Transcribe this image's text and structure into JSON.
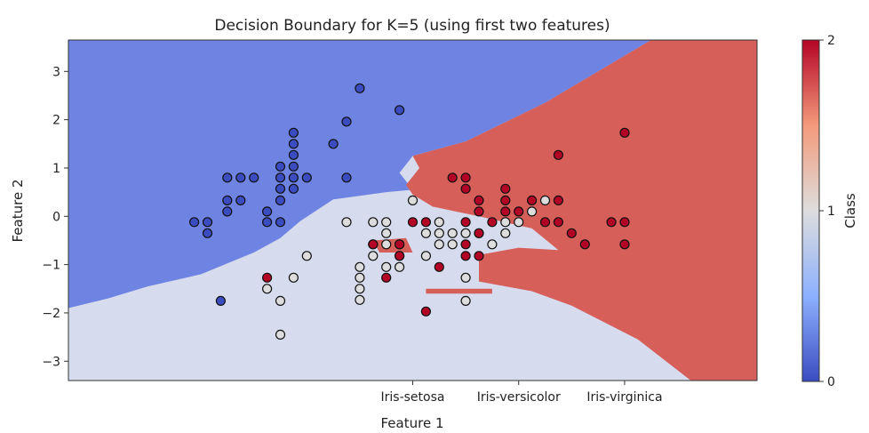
{
  "chart_data": {
    "type": "scatter",
    "title": "Decision Boundary for K=5 (using first two features)",
    "xlabel": "Feature 1",
    "ylabel": "Feature 2",
    "xlim": [
      -2.6,
      2.6
    ],
    "ylim": [
      -3.4,
      3.65
    ],
    "x_tick_labels": [
      {
        "value": 0.0,
        "label": "Iris-setosa"
      },
      {
        "value": 0.8,
        "label": "Iris-versicolor"
      },
      {
        "value": 1.6,
        "label": "Iris-virginica"
      }
    ],
    "y_ticks": [
      -3,
      -2,
      -1,
      0,
      1,
      2,
      3
    ],
    "y_tick_labels": [
      "−3",
      "−2",
      "−1",
      "0",
      "1",
      "2",
      "3"
    ],
    "colorbar": {
      "label": "Class",
      "ticks": [
        0,
        1,
        2
      ],
      "tick_labels": [
        "0",
        "1",
        "2"
      ],
      "colors": [
        "#3b4cc0",
        "#dddddd",
        "#b40426"
      ]
    },
    "region_colors": {
      "0": "#6f84e2",
      "1": "#d6dcee",
      "2": "#d65f5a"
    },
    "point_colors": {
      "0": "#3b4cc0",
      "1": "#dddddd",
      "2": "#b40426"
    },
    "regions": {
      "class0": [
        [
          -2.6,
          -1.9
        ],
        [
          -2.3,
          -1.7
        ],
        [
          -2.0,
          -1.45
        ],
        [
          -1.6,
          -1.2
        ],
        [
          -1.2,
          -0.75
        ],
        [
          -1.0,
          -0.45
        ],
        [
          -0.85,
          -0.1
        ],
        [
          -0.6,
          0.35
        ],
        [
          -0.2,
          0.5
        ],
        [
          0.0,
          0.55
        ],
        [
          -0.1,
          0.9
        ],
        [
          0.0,
          1.25
        ],
        [
          0.4,
          1.55
        ],
        [
          1.0,
          2.35
        ],
        [
          1.8,
          3.65
        ],
        [
          -2.6,
          3.65
        ]
      ],
      "class2": [
        [
          1.8,
          3.65
        ],
        [
          2.6,
          3.65
        ],
        [
          2.6,
          -3.4
        ],
        [
          2.1,
          -3.4
        ],
        [
          1.7,
          -2.55
        ],
        [
          1.2,
          -1.85
        ],
        [
          0.9,
          -1.55
        ],
        [
          0.5,
          -1.35
        ],
        [
          0.5,
          -0.8
        ],
        [
          0.8,
          -0.65
        ],
        [
          1.1,
          -0.7
        ],
        [
          0.9,
          -0.25
        ],
        [
          0.5,
          0.0
        ],
        [
          0.15,
          0.2
        ],
        [
          0.0,
          0.45
        ],
        [
          -0.05,
          0.65
        ],
        [
          0.05,
          1.0
        ],
        [
          0.0,
          1.25
        ],
        [
          0.4,
          1.55
        ],
        [
          1.0,
          2.35
        ]
      ],
      "patches2": [
        [
          [
            -0.3,
            -0.5
          ],
          [
            -0.05,
            -0.45
          ],
          [
            0.0,
            -0.75
          ],
          [
            -0.25,
            -0.75
          ]
        ],
        [
          [
            0.1,
            -1.5
          ],
          [
            0.6,
            -1.5
          ],
          [
            0.6,
            -1.6
          ],
          [
            0.1,
            -1.6
          ]
        ],
        [
          [
            1.75,
            -2.55
          ],
          [
            2.05,
            -2.7
          ],
          [
            2.05,
            -3.0
          ]
        ]
      ]
    },
    "series": [
      {
        "class": 0,
        "points": [
          [
            -1.65,
            -0.12
          ],
          [
            -1.55,
            -0.12
          ],
          [
            -1.55,
            -0.35
          ],
          [
            -1.45,
            -1.75
          ],
          [
            -1.4,
            0.8
          ],
          [
            -1.4,
            0.33
          ],
          [
            -1.4,
            0.1
          ],
          [
            -1.3,
            0.33
          ],
          [
            -1.3,
            0.8
          ],
          [
            -1.2,
            0.8
          ],
          [
            -1.1,
            0.1
          ],
          [
            -1.1,
            -0.12
          ],
          [
            -1.0,
            1.03
          ],
          [
            -1.0,
            0.8
          ],
          [
            -1.0,
            0.57
          ],
          [
            -1.0,
            0.33
          ],
          [
            -1.0,
            -0.12
          ],
          [
            -0.9,
            1.03
          ],
          [
            -0.9,
            0.8
          ],
          [
            -0.9,
            0.57
          ],
          [
            -0.9,
            1.27
          ],
          [
            -0.9,
            1.5
          ],
          [
            -0.9,
            1.73
          ],
          [
            -0.8,
            0.8
          ],
          [
            -0.6,
            1.5
          ],
          [
            -0.5,
            1.96
          ],
          [
            -0.5,
            0.8
          ],
          [
            -0.4,
            2.65
          ],
          [
            -0.1,
            2.2
          ]
        ]
      },
      {
        "class": 1,
        "points": [
          [
            -1.1,
            -1.5
          ],
          [
            -1.0,
            -1.75
          ],
          [
            -1.0,
            -2.45
          ],
          [
            -0.9,
            -1.27
          ],
          [
            -0.8,
            -0.82
          ],
          [
            -0.5,
            -0.12
          ],
          [
            -0.4,
            -1.05
          ],
          [
            -0.4,
            -1.27
          ],
          [
            -0.4,
            -1.5
          ],
          [
            -0.4,
            -1.73
          ],
          [
            -0.3,
            -0.58
          ],
          [
            -0.3,
            -0.82
          ],
          [
            -0.3,
            -0.12
          ],
          [
            -0.2,
            -0.12
          ],
          [
            -0.2,
            -0.35
          ],
          [
            -0.2,
            -0.58
          ],
          [
            -0.2,
            -1.05
          ],
          [
            -0.1,
            -0.58
          ],
          [
            -0.1,
            -0.82
          ],
          [
            -0.1,
            -1.05
          ],
          [
            0.0,
            0.33
          ],
          [
            0.1,
            -0.82
          ],
          [
            0.1,
            -0.35
          ],
          [
            0.2,
            -0.12
          ],
          [
            0.2,
            -0.35
          ],
          [
            0.2,
            -0.58
          ],
          [
            0.3,
            -0.35
          ],
          [
            0.3,
            -0.58
          ],
          [
            0.4,
            -0.35
          ],
          [
            0.4,
            -1.27
          ],
          [
            0.4,
            -1.75
          ],
          [
            0.5,
            -0.35
          ],
          [
            0.6,
            -0.58
          ],
          [
            0.7,
            -0.12
          ],
          [
            0.7,
            -0.35
          ],
          [
            0.8,
            -0.12
          ],
          [
            0.9,
            0.1
          ],
          [
            1.0,
            0.33
          ]
        ]
      },
      {
        "class": 2,
        "points": [
          [
            -1.1,
            -1.27
          ],
          [
            -0.3,
            -0.58
          ],
          [
            -0.2,
            -1.27
          ],
          [
            -0.1,
            -0.58
          ],
          [
            -0.1,
            -0.82
          ],
          [
            0.0,
            -0.12
          ],
          [
            0.1,
            -0.12
          ],
          [
            0.1,
            -1.97
          ],
          [
            0.2,
            -1.05
          ],
          [
            0.3,
            0.8
          ],
          [
            0.4,
            0.57
          ],
          [
            0.4,
            0.8
          ],
          [
            0.4,
            -0.58
          ],
          [
            0.4,
            -0.82
          ],
          [
            0.4,
            -0.12
          ],
          [
            0.5,
            0.33
          ],
          [
            0.5,
            0.1
          ],
          [
            0.5,
            -0.35
          ],
          [
            0.5,
            -0.82
          ],
          [
            0.6,
            -0.12
          ],
          [
            0.7,
            0.33
          ],
          [
            0.7,
            0.1
          ],
          [
            0.7,
            0.57
          ],
          [
            0.8,
            0.1
          ],
          [
            0.9,
            0.33
          ],
          [
            1.0,
            -0.12
          ],
          [
            1.1,
            -0.12
          ],
          [
            1.1,
            0.33
          ],
          [
            1.1,
            1.27
          ],
          [
            1.2,
            -0.35
          ],
          [
            1.3,
            -0.58
          ],
          [
            1.5,
            -0.12
          ],
          [
            1.6,
            -0.12
          ],
          [
            1.6,
            1.73
          ],
          [
            1.6,
            -0.58
          ]
        ]
      }
    ]
  }
}
